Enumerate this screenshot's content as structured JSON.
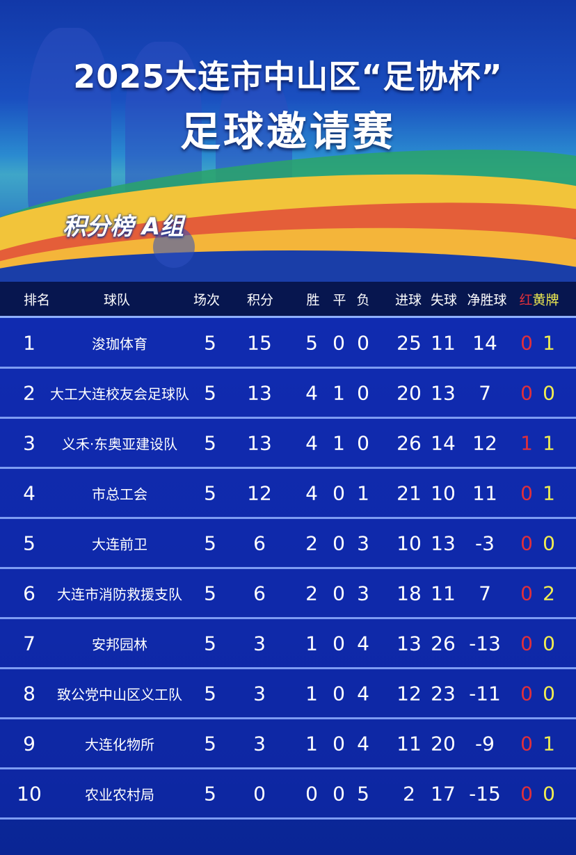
{
  "header": {
    "title_line1": "2025大连市中山区“足协杯”",
    "title_line2": "足球邀请赛",
    "group_label": "积分榜 A组"
  },
  "colors": {
    "red_card": "#e0303a",
    "yellow_card": "#f2ee50",
    "header_bg": "#07164f",
    "table_bg": "#1130b8"
  },
  "table": {
    "columns": {
      "rank": "排名",
      "team": "球队",
      "played": "场次",
      "points": "积分",
      "won": "胜",
      "drawn": "平",
      "lost": "负",
      "gf": "进球",
      "ga": "失球",
      "gd": "净胜球",
      "cards_red": "红",
      "cards_yellow": "黄牌"
    },
    "rows": [
      {
        "rank": "1",
        "team": "浚珈体育",
        "played": "5",
        "points": "15",
        "won": "5",
        "drawn": "0",
        "lost": "0",
        "gf": "25",
        "ga": "11",
        "gd": "14",
        "red": "0",
        "yellow": "1"
      },
      {
        "rank": "2",
        "team": "大工大连校友会足球队",
        "played": "5",
        "points": "13",
        "won": "4",
        "drawn": "1",
        "lost": "0",
        "gf": "20",
        "ga": "13",
        "gd": "7",
        "red": "0",
        "yellow": "0"
      },
      {
        "rank": "3",
        "team": "义禾·东奥亚建设队",
        "played": "5",
        "points": "13",
        "won": "4",
        "drawn": "1",
        "lost": "0",
        "gf": "26",
        "ga": "14",
        "gd": "12",
        "red": "1",
        "yellow": "1"
      },
      {
        "rank": "4",
        "team": "市总工会",
        "played": "5",
        "points": "12",
        "won": "4",
        "drawn": "0",
        "lost": "1",
        "gf": "21",
        "ga": "10",
        "gd": "11",
        "red": "0",
        "yellow": "1"
      },
      {
        "rank": "5",
        "team": "大连前卫",
        "played": "5",
        "points": "6",
        "won": "2",
        "drawn": "0",
        "lost": "3",
        "gf": "10",
        "ga": "13",
        "gd": "-3",
        "red": "0",
        "yellow": "0"
      },
      {
        "rank": "6",
        "team": "大连市消防救援支队",
        "played": "5",
        "points": "6",
        "won": "2",
        "drawn": "0",
        "lost": "3",
        "gf": "18",
        "ga": "11",
        "gd": "7",
        "red": "0",
        "yellow": "2"
      },
      {
        "rank": "7",
        "team": "安邦园林",
        "played": "5",
        "points": "3",
        "won": "1",
        "drawn": "0",
        "lost": "4",
        "gf": "13",
        "ga": "26",
        "gd": "-13",
        "red": "0",
        "yellow": "0"
      },
      {
        "rank": "8",
        "team": "致公党中山区义工队",
        "played": "5",
        "points": "3",
        "won": "1",
        "drawn": "0",
        "lost": "4",
        "gf": "12",
        "ga": "23",
        "gd": "-11",
        "red": "0",
        "yellow": "0"
      },
      {
        "rank": "9",
        "team": "大连化物所",
        "played": "5",
        "points": "3",
        "won": "1",
        "drawn": "0",
        "lost": "4",
        "gf": "11",
        "ga": "20",
        "gd": "-9",
        "red": "0",
        "yellow": "1"
      },
      {
        "rank": "10",
        "team": "农业农村局",
        "played": "5",
        "points": "0",
        "won": "0",
        "drawn": "0",
        "lost": "5",
        "gf": "2",
        "ga": "17",
        "gd": "-15",
        "red": "0",
        "yellow": "0"
      }
    ]
  }
}
